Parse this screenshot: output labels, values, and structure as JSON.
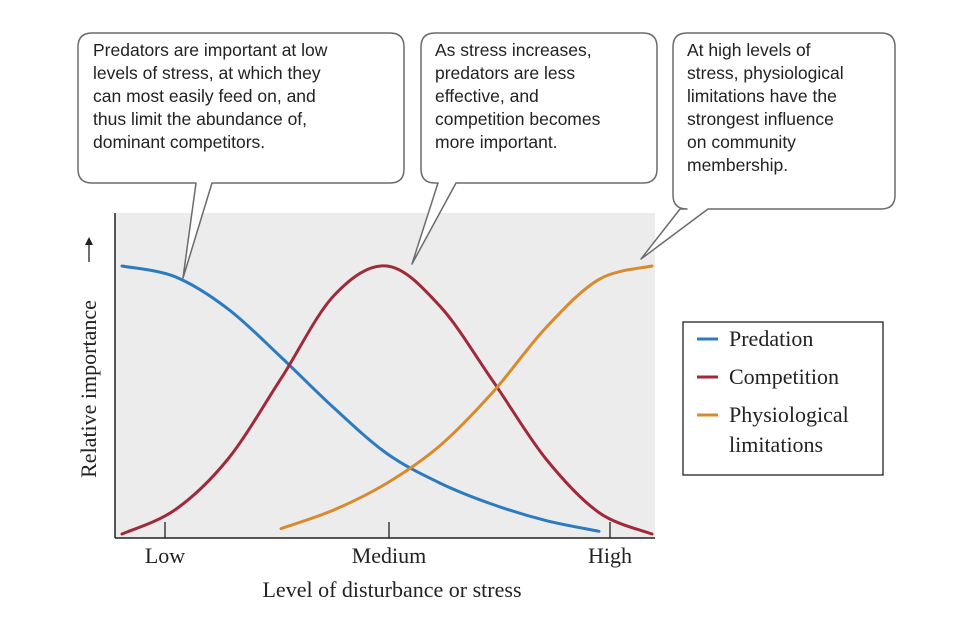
{
  "chart_data": {
    "type": "line",
    "xlabel": "Level of disturbance or stress",
    "ylabel": "Relative importance",
    "x_tick_labels": [
      "Low",
      "Medium",
      "High"
    ],
    "x": [
      0.0,
      0.1,
      0.2,
      0.3,
      0.4,
      0.5,
      0.6,
      0.7,
      0.8,
      0.9,
      1.0
    ],
    "series": [
      {
        "name": "Predation",
        "color": "#2b7bc0",
        "values": [
          1.0,
          0.96,
          0.84,
          0.66,
          0.47,
          0.3,
          0.19,
          0.11,
          0.05,
          0.01,
          null
        ]
      },
      {
        "name": "Competition",
        "color": "#a12a3a",
        "values": [
          0.0,
          0.09,
          0.28,
          0.58,
          0.89,
          1.0,
          0.85,
          0.57,
          0.28,
          0.08,
          0.0
        ]
      },
      {
        "name": "Physiological limitations",
        "color": "#d88a2e",
        "values": [
          null,
          null,
          null,
          0.02,
          0.09,
          0.19,
          0.33,
          0.53,
          0.77,
          0.95,
          1.0
        ]
      }
    ],
    "legend": {
      "placement": "right",
      "entries": [
        {
          "lines": [
            "Predation"
          ],
          "color": "#2b7bc0"
        },
        {
          "lines": [
            "Competition"
          ],
          "color": "#a12a3a"
        },
        {
          "lines": [
            "Physiological",
            "limitations"
          ],
          "color": "#d88a2e"
        }
      ]
    },
    "annotations": [
      {
        "lines": [
          "Predators are important at low",
          "levels of stress, at which they",
          "can most easily feed on, and",
          "thus limit the abundance of,",
          "dominant competitors."
        ]
      },
      {
        "lines": [
          "As stress increases,",
          "predators are less",
          "effective, and",
          "competition becomes",
          "more important."
        ]
      },
      {
        "lines": [
          "At high levels of",
          "stress, physiological",
          "limitations have the",
          "strongest influence",
          "on community",
          "membership."
        ]
      }
    ],
    "grid": false
  }
}
